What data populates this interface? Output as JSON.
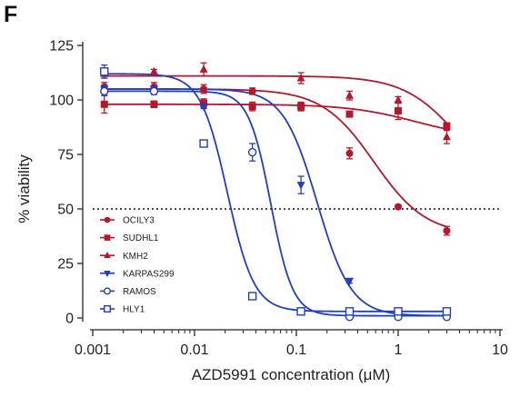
{
  "panel_label": "F",
  "chart_data": {
    "type": "scatter",
    "xlabel": "AZD5991 concentration (μM)",
    "ylabel": "% viability",
    "x_scale": "log",
    "xlim": [
      0.001,
      10
    ],
    "ylim": [
      0,
      125
    ],
    "x_ticks": [
      {
        "value": 0.001,
        "label": "0.001"
      },
      {
        "value": 0.01,
        "label": "0.01"
      },
      {
        "value": 0.1,
        "label": "0.1"
      },
      {
        "value": 1,
        "label": "1"
      },
      {
        "value": 10,
        "label": "10"
      }
    ],
    "y_ticks": [
      {
        "value": 0,
        "label": "0"
      },
      {
        "value": 25,
        "label": "25"
      },
      {
        "value": 50,
        "label": "50"
      },
      {
        "value": 75,
        "label": "75"
      },
      {
        "value": 100,
        "label": "100"
      },
      {
        "value": 125,
        "label": "125"
      }
    ],
    "reference_line": {
      "y": 50,
      "style": "dotted"
    },
    "legend_position": "lower-left",
    "series": [
      {
        "name": "OCILY3",
        "color": "#b5172b",
        "marker": "circle-filled",
        "points": [
          {
            "x": 0.0013,
            "y": 106,
            "err": 2
          },
          {
            "x": 0.004,
            "y": 106,
            "err": 2
          },
          {
            "x": 0.0123,
            "y": 105,
            "err": 2
          },
          {
            "x": 0.037,
            "y": 104,
            "err": 1.5
          },
          {
            "x": 0.111,
            "y": 97,
            "err": 2
          },
          {
            "x": 0.333,
            "y": 75.5,
            "err": 2.5
          },
          {
            "x": 1.0,
            "y": 51,
            "err": 1
          },
          {
            "x": 3.0,
            "y": 40,
            "err": 2
          }
        ],
        "curve": {
          "top": 105,
          "bottom": 38,
          "ec50": 0.58,
          "hill": 1.7
        }
      },
      {
        "name": "SUDHL1",
        "color": "#b5172b",
        "marker": "square-filled",
        "points": [
          {
            "x": 0.0013,
            "y": 98,
            "err": 4
          },
          {
            "x": 0.004,
            "y": 98,
            "err": 1.5
          },
          {
            "x": 0.0123,
            "y": 98.5,
            "err": 2
          },
          {
            "x": 0.037,
            "y": 97,
            "err": 2
          },
          {
            "x": 0.111,
            "y": 97,
            "err": 1.5
          },
          {
            "x": 0.333,
            "y": 93.5,
            "err": 1
          },
          {
            "x": 1.0,
            "y": 95,
            "err": 4
          },
          {
            "x": 3.0,
            "y": 88,
            "err": 1.5
          }
        ],
        "curve": {
          "top": 98,
          "bottom": 82,
          "ec50": 1.5,
          "hill": 1.3
        }
      },
      {
        "name": "KMH2",
        "color": "#b5172b",
        "marker": "triangle-up-filled",
        "points": [
          {
            "x": 0.0013,
            "y": 112,
            "err": 2
          },
          {
            "x": 0.004,
            "y": 113,
            "err": 1
          },
          {
            "x": 0.0123,
            "y": 114,
            "err": 3
          },
          {
            "x": 0.111,
            "y": 110,
            "err": 2.5
          },
          {
            "x": 0.333,
            "y": 102,
            "err": 2
          },
          {
            "x": 1.0,
            "y": 100,
            "err": 1.5
          },
          {
            "x": 3.0,
            "y": 83,
            "err": 3
          }
        ],
        "curve": {
          "top": 111,
          "bottom": 55,
          "ec50": 4.0,
          "hill": 1.6
        }
      },
      {
        "name": "KARPAS299",
        "color": "#1f3fbf",
        "marker": "triangle-down-filled",
        "points": [
          {
            "x": 0.0013,
            "y": 105,
            "err": 1.5
          },
          {
            "x": 0.004,
            "y": 105,
            "err": 1
          },
          {
            "x": 0.0123,
            "y": 97,
            "err": 1
          },
          {
            "x": 0.111,
            "y": 61,
            "err": 4
          },
          {
            "x": 0.333,
            "y": 17,
            "err": 1
          },
          {
            "x": 1.0,
            "y": 2,
            "err": 1
          },
          {
            "x": 3.0,
            "y": 2,
            "err": 1
          }
        ],
        "curve": {
          "top": 105,
          "bottom": 1,
          "ec50": 0.16,
          "hill": 2.6
        }
      },
      {
        "name": "RAMOS",
        "color": "#1f3fbf",
        "marker": "circle-open",
        "points": [
          {
            "x": 0.0013,
            "y": 104,
            "err": 2
          },
          {
            "x": 0.004,
            "y": 104,
            "err": 1.5
          },
          {
            "x": 0.037,
            "y": 76,
            "err": 4
          },
          {
            "x": 0.111,
            "y": 3,
            "err": 1
          },
          {
            "x": 0.333,
            "y": 0.5,
            "err": 1
          },
          {
            "x": 1.0,
            "y": 0.5,
            "err": 0.5
          },
          {
            "x": 3.0,
            "y": 0.5,
            "err": 0.5
          }
        ],
        "curve": {
          "top": 104,
          "bottom": 1,
          "ec50": 0.056,
          "hill": 4.0
        }
      },
      {
        "name": "HLY1",
        "color": "#1f3fbf",
        "marker": "square-open",
        "points": [
          {
            "x": 0.0013,
            "y": 113,
            "err": 3
          },
          {
            "x": 0.0123,
            "y": 80,
            "err": 1.5
          },
          {
            "x": 0.037,
            "y": 10,
            "err": 1
          },
          {
            "x": 0.111,
            "y": 3,
            "err": 1
          },
          {
            "x": 0.333,
            "y": 3,
            "err": 1
          },
          {
            "x": 1.0,
            "y": 3,
            "err": 1
          },
          {
            "x": 3.0,
            "y": 3,
            "err": 1
          }
        ],
        "curve": {
          "top": 112,
          "bottom": 3,
          "ec50": 0.021,
          "hill": 3.3
        }
      }
    ]
  }
}
